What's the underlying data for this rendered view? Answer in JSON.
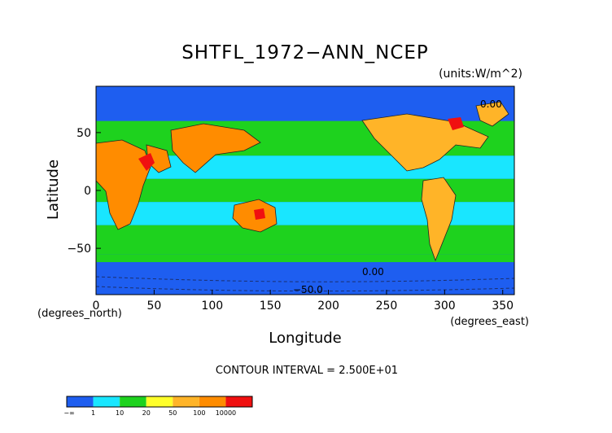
{
  "chart_data": {
    "type": "heatmap",
    "title": "SHTFL_1972−ANN_NCEP",
    "units": "(units:W/m^2)",
    "xlabel": "Longitude",
    "ylabel": "Latitude",
    "x_unit_note": "(degrees_east)",
    "y_unit_note": "(degrees_north)",
    "xlim": [
      0,
      360
    ],
    "ylim": [
      -90,
      90
    ],
    "x_ticks": [
      "0",
      "50",
      "100",
      "150",
      "200",
      "250",
      "300",
      "350"
    ],
    "y_ticks": [
      "50",
      "0",
      "−50"
    ],
    "contour_note": "CONTOUR INTERVAL = 2.500E+01",
    "contour_labels": [
      "0.00",
      "0.00",
      "−50.0"
    ],
    "colorbar": {
      "bins": [
        {
          "color": "#1e5ef0"
        },
        {
          "color": "#19e6ff"
        },
        {
          "color": "#1ed21e"
        },
        {
          "color": "#ffff2a"
        },
        {
          "color": "#ffb428"
        },
        {
          "color": "#ff8c00"
        },
        {
          "color": "#f01010"
        }
      ],
      "tick_labels": [
        "1",
        "10",
        "20",
        "50",
        "100",
        "10000"
      ],
      "left_label": "−∞"
    },
    "field_bands": [
      {
        "lat": [
          60,
          90
        ],
        "level": 0
      },
      {
        "lat": [
          45,
          60
        ],
        "level": 2
      },
      {
        "lat": [
          30,
          45
        ],
        "level": 2
      },
      {
        "lat": [
          10,
          30
        ],
        "level": 1
      },
      {
        "lat": [
          -10,
          10
        ],
        "level": 2
      },
      {
        "lat": [
          -30,
          -10
        ],
        "level": 1
      },
      {
        "lat": [
          -45,
          -30
        ],
        "level": 2
      },
      {
        "lat": [
          -55,
          -45
        ],
        "level": 2
      },
      {
        "lat": [
          -62,
          -55
        ],
        "level": 2
      },
      {
        "lat": [
          -90,
          -62
        ],
        "level": 0
      }
    ]
  }
}
